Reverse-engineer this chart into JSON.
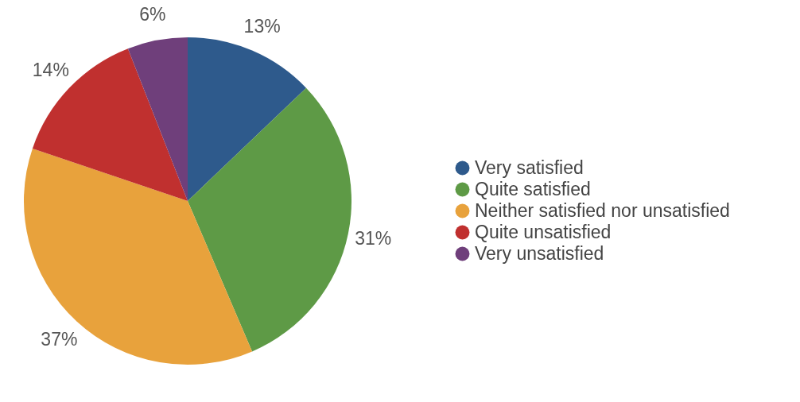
{
  "chart_data": {
    "type": "pie",
    "categories": [
      "Very satisfied",
      "Quite satisfied",
      "Neither satisfied nor unsatisfied",
      "Quite unsatisfied",
      "Very unsatisfied"
    ],
    "values": [
      13,
      31,
      37,
      14,
      6
    ],
    "value_labels": [
      "13%",
      "31%",
      "37%",
      "14%",
      "6%"
    ],
    "colors": [
      "#2e5a8c",
      "#5e9a46",
      "#e8a23c",
      "#c0302f",
      "#6f3f7b"
    ],
    "legend": "right"
  }
}
